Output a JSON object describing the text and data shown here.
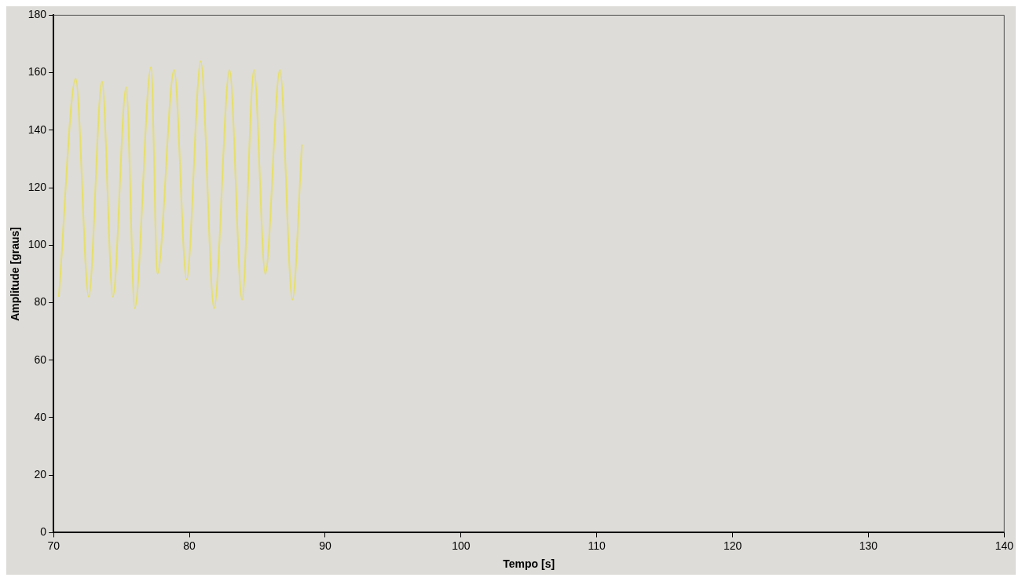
{
  "chart_data": {
    "type": "line",
    "xlabel": "Tempo [s]",
    "ylabel": "Amplitude [graus]",
    "xlim": [
      70,
      140
    ],
    "xticks": [
      70,
      80,
      90,
      100,
      110,
      120,
      130,
      140
    ],
    "ylim": [
      0,
      180
    ],
    "yticks": [
      0,
      20,
      40,
      60,
      80,
      100,
      120,
      140,
      160,
      180
    ],
    "grid": false,
    "marker": "none",
    "series": [
      {
        "color": "#e6df6a",
        "x": [
          70.39,
          71.63,
          72.59,
          73.57,
          74.37,
          75.35,
          75.98,
          77.18,
          77.65,
          78.88,
          79.8,
          80.84,
          81.82,
          82.96,
          83.88,
          84.76,
          85.59,
          86.67,
          87.59,
          88.29
        ],
        "values": [
          82,
          158,
          82,
          157,
          82,
          155,
          78,
          162,
          90,
          161,
          88,
          164,
          78,
          161,
          81,
          161,
          90,
          161,
          81,
          135
        ]
      }
    ]
  }
}
